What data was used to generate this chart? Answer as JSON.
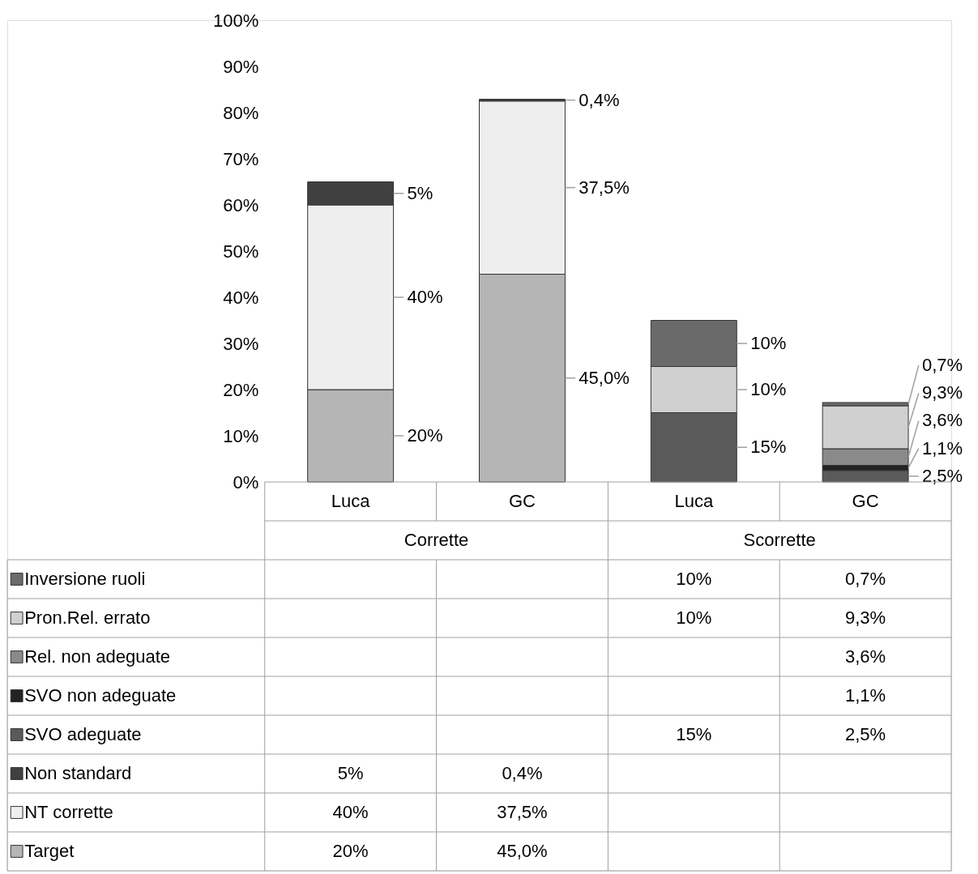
{
  "chart_data": {
    "type": "bar",
    "stacked": true,
    "categories": [
      "Luca",
      "GC",
      "Luca",
      "GC"
    ],
    "ylim": [
      0,
      100
    ],
    "yticks": [
      {
        "value": 0,
        "label": "0%"
      },
      {
        "value": 10,
        "label": "10%"
      },
      {
        "value": 20,
        "label": "20%"
      },
      {
        "value": 30,
        "label": "30%"
      },
      {
        "value": 40,
        "label": "40%"
      },
      {
        "value": 50,
        "label": "50%"
      },
      {
        "value": 60,
        "label": "60%"
      },
      {
        "value": 70,
        "label": "70%"
      },
      {
        "value": 80,
        "label": "80%"
      },
      {
        "value": 90,
        "label": "90%"
      },
      {
        "value": 100,
        "label": "100%"
      }
    ],
    "grid": false,
    "legend": "bottom",
    "annotations": [
      "Corrette",
      "Scorrette"
    ],
    "series": [
      {
        "name": "Target",
        "color": "#b5b5b5",
        "values": [
          20,
          45,
          null,
          null
        ],
        "value_labels": [
          "20%",
          "45,0%",
          null,
          null
        ]
      },
      {
        "name": "NT corrette",
        "color": "#eeeeee",
        "values": [
          40,
          37.5,
          null,
          null
        ],
        "value_labels": [
          "40%",
          "37,5%",
          null,
          null
        ]
      },
      {
        "name": "Non standard",
        "color": "#404040",
        "values": [
          5,
          0.4,
          null,
          null
        ],
        "value_labels": [
          "5%",
          "0,4%",
          null,
          null
        ]
      },
      {
        "name": "SVO adeguate",
        "color": "#5a5a5a",
        "values": [
          null,
          null,
          15,
          2.5
        ],
        "value_labels": [
          null,
          null,
          "15%",
          "2,5%"
        ]
      },
      {
        "name": "SVO non adeguate",
        "color": "#222222",
        "values": [
          null,
          null,
          null,
          1.1
        ],
        "value_labels": [
          null,
          null,
          null,
          "1,1%"
        ]
      },
      {
        "name": "Rel. non adeguate",
        "color": "#8a8a8a",
        "values": [
          null,
          null,
          null,
          3.6
        ],
        "value_labels": [
          null,
          null,
          null,
          "3,6%"
        ]
      },
      {
        "name": "Pron.Rel. errato",
        "color": "#d0d0d0",
        "values": [
          null,
          null,
          10,
          9.3
        ],
        "value_labels": [
          null,
          null,
          "10%",
          "9,3%"
        ]
      },
      {
        "name": "Inversione ruoli",
        "color": "#6a6a6a",
        "values": [
          null,
          null,
          10,
          0.7
        ],
        "value_labels": [
          null,
          null,
          "10%",
          "0,7%"
        ]
      }
    ]
  }
}
